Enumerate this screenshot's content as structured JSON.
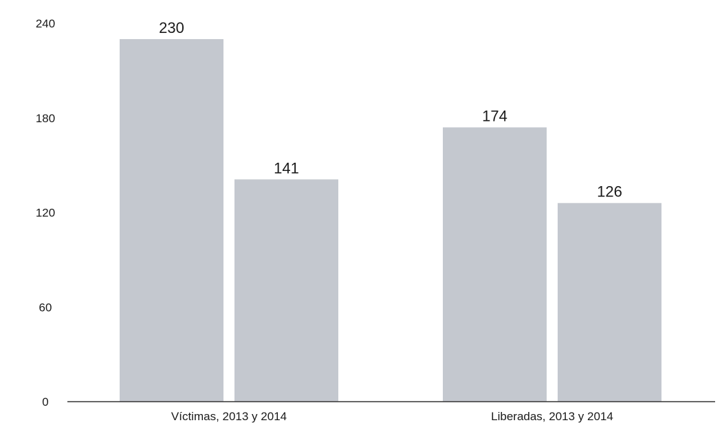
{
  "chart_data": {
    "type": "bar",
    "categories": [
      "Víctimas, 2013 y 2014",
      "Liberadas, 2013 y 2014"
    ],
    "series": [
      {
        "values": [
          230,
          174
        ]
      },
      {
        "values": [
          141,
          126
        ]
      }
    ],
    "data_labels": [
      [
        "230",
        "174"
      ],
      [
        "141",
        "126"
      ]
    ],
    "yticks": [
      0,
      60,
      120,
      180,
      240
    ],
    "ylim": [
      0,
      240
    ],
    "title": "",
    "xlabel": "",
    "ylabel": "",
    "grid": false,
    "bar_color": "#c4c8cf",
    "axis_color": "#333333"
  }
}
